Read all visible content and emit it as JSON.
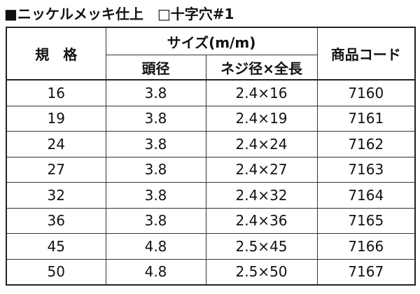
{
  "header": {
    "title": "■ニッケルメッキ仕上　□十字穴#1"
  },
  "table": {
    "columns": {
      "spec": "規　格",
      "size": "サイズ(m/m)",
      "head": "頭径",
      "screw": "ネジ径×全長",
      "code": "商品コード"
    },
    "rows": [
      [
        "16",
        "3.8",
        "2.4×16",
        "7160"
      ],
      [
        "19",
        "3.8",
        "2.4×19",
        "7161"
      ],
      [
        "24",
        "3.8",
        "2.4×24",
        "7162"
      ],
      [
        "27",
        "3.8",
        "2.4×27",
        "7163"
      ],
      [
        "32",
        "3.8",
        "2.4×32",
        "7164"
      ],
      [
        "36",
        "3.8",
        "2.4×36",
        "7165"
      ],
      [
        "45",
        "4.8",
        "2.5×45",
        "7166"
      ],
      [
        "50",
        "4.8",
        "2.5×50",
        "7167"
      ]
    ]
  }
}
